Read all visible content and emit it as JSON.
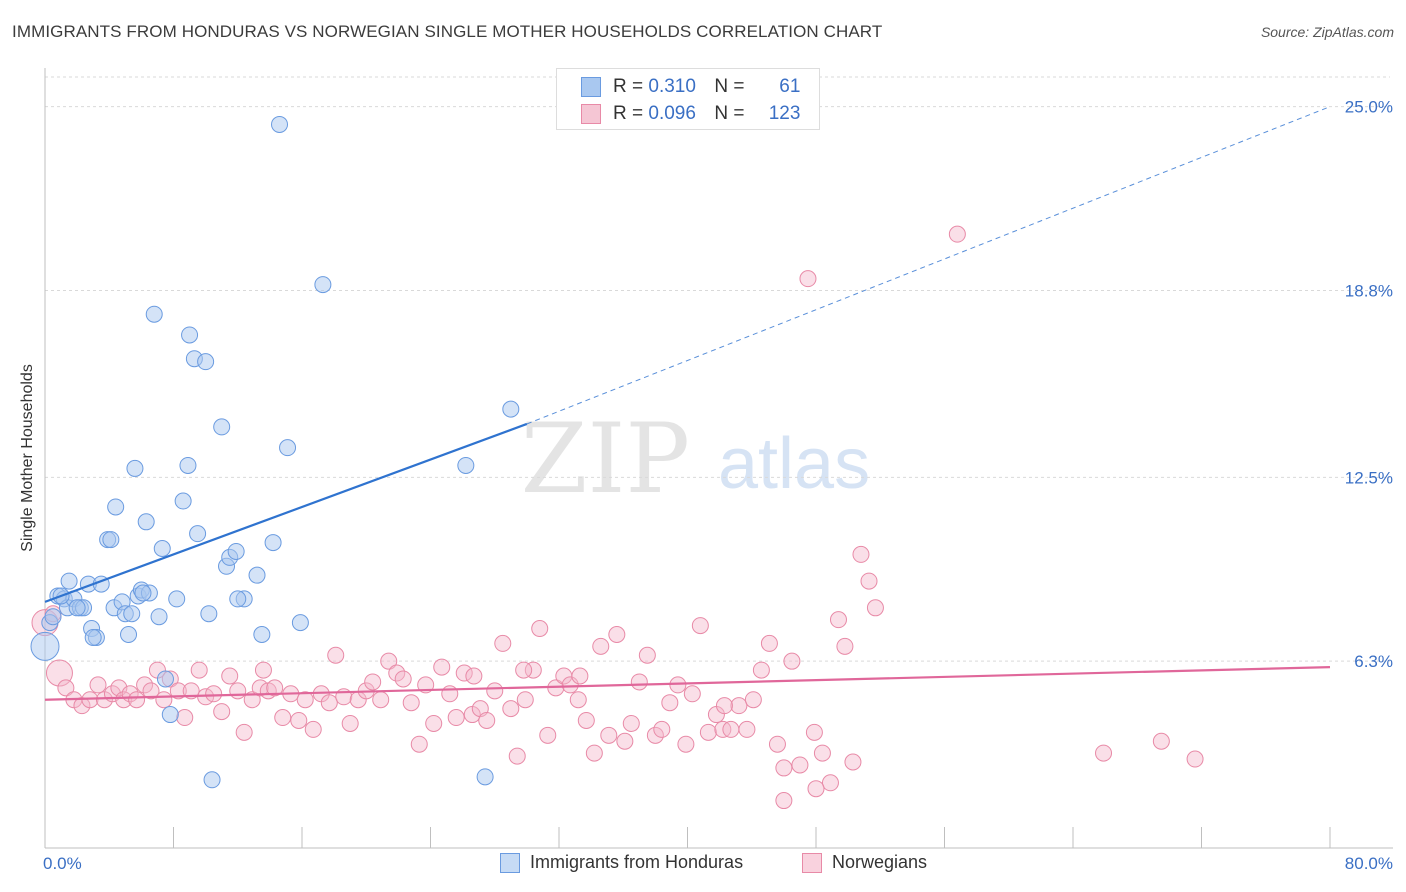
{
  "title": "IMMIGRANTS FROM HONDURAS VS NORWEGIAN SINGLE MOTHER HOUSEHOLDS CORRELATION CHART",
  "source": "Source: ZipAtlas.com",
  "watermark": {
    "zip": "ZIP",
    "atlas": "atlas"
  },
  "legend": {
    "r_label": "R =",
    "n_label": "N =",
    "series1": {
      "r": "0.310",
      "n": "61"
    },
    "series2": {
      "r": "0.096",
      "n": "123"
    }
  },
  "colors": {
    "blue_fill": "#a9c8f0",
    "blue_stroke": "#6a9be0",
    "blue_line": "#2f73cf",
    "pink_fill": "#f5b8cb",
    "pink_stroke": "#e88aa7",
    "pink_line": "#e0679a",
    "tick_text": "#3a6fc4",
    "grid": "#d9d9d9"
  },
  "chart_data": {
    "type": "scatter",
    "title": "IMMIGRANTS FROM HONDURAS VS NORWEGIAN SINGLE MOTHER HOUSEHOLDS CORRELATION CHART",
    "xlabel": "",
    "ylabel": "Single Mother Households",
    "xlim": [
      0,
      80
    ],
    "ylim": [
      0,
      26
    ],
    "x_tick_labels": [
      "0.0%",
      "80.0%"
    ],
    "y_ticks": [
      6.3,
      12.5,
      18.8,
      25.0
    ],
    "y_tick_labels": [
      "6.3%",
      "12.5%",
      "18.8%",
      "25.0%"
    ],
    "grid": "horizontal dashed",
    "legend_position": "top-center",
    "series": [
      {
        "name": "Immigrants from Honduras",
        "color": "#a9c8f0",
        "trend": {
          "x0": 0,
          "y0": 8.3,
          "x1": 30,
          "y1": 14.3,
          "dashed_to_x": 80,
          "dashed_to_y": 25.0
        },
        "points": [
          [
            0.0,
            6.8
          ],
          [
            0.3,
            7.6
          ],
          [
            0.5,
            7.8
          ],
          [
            0.8,
            8.5
          ],
          [
            1.2,
            8.4
          ],
          [
            1.4,
            8.1
          ],
          [
            1.5,
            9.0
          ],
          [
            1.8,
            8.4
          ],
          [
            2.2,
            8.1
          ],
          [
            2.4,
            8.1
          ],
          [
            2.7,
            8.9
          ],
          [
            2.9,
            7.4
          ],
          [
            3.2,
            7.1
          ],
          [
            3.5,
            8.9
          ],
          [
            3.9,
            10.4
          ],
          [
            4.1,
            10.4
          ],
          [
            4.3,
            8.1
          ],
          [
            4.4,
            11.5
          ],
          [
            4.8,
            8.3
          ],
          [
            5.0,
            7.9
          ],
          [
            5.2,
            7.2
          ],
          [
            5.4,
            7.9
          ],
          [
            5.6,
            12.8
          ],
          [
            5.8,
            8.5
          ],
          [
            6.0,
            8.7
          ],
          [
            6.3,
            11.0
          ],
          [
            6.5,
            8.6
          ],
          [
            6.8,
            18.0
          ],
          [
            7.1,
            7.8
          ],
          [
            7.3,
            10.1
          ],
          [
            7.5,
            5.7
          ],
          [
            7.8,
            4.5
          ],
          [
            8.2,
            8.4
          ],
          [
            8.6,
            11.7
          ],
          [
            8.9,
            12.9
          ],
          [
            9.0,
            17.3
          ],
          [
            9.3,
            16.5
          ],
          [
            9.5,
            10.6
          ],
          [
            10.0,
            16.4
          ],
          [
            10.2,
            7.9
          ],
          [
            10.4,
            2.3
          ],
          [
            11.0,
            14.2
          ],
          [
            11.3,
            9.5
          ],
          [
            11.5,
            9.8
          ],
          [
            11.9,
            10.0
          ],
          [
            12.4,
            8.4
          ],
          [
            13.2,
            9.2
          ],
          [
            13.5,
            7.2
          ],
          [
            14.2,
            10.3
          ],
          [
            15.1,
            13.5
          ],
          [
            15.9,
            7.6
          ],
          [
            14.6,
            24.4
          ],
          [
            17.3,
            19.0
          ],
          [
            26.2,
            12.9
          ],
          [
            27.4,
            2.4
          ],
          [
            29.0,
            14.8
          ],
          [
            1.0,
            8.5
          ],
          [
            2.0,
            8.1
          ],
          [
            3.0,
            7.1
          ],
          [
            6.1,
            8.6
          ],
          [
            12.0,
            8.4
          ]
        ]
      },
      {
        "name": "Norwegians",
        "color": "#f5b8cb",
        "trend": {
          "x0": 0,
          "y0": 5.0,
          "x1": 80,
          "y1": 6.1
        },
        "points": [
          [
            0.0,
            7.6
          ],
          [
            0.5,
            7.9
          ],
          [
            0.9,
            5.9
          ],
          [
            1.3,
            5.4
          ],
          [
            1.8,
            5.0
          ],
          [
            2.3,
            4.8
          ],
          [
            2.8,
            5.0
          ],
          [
            3.3,
            5.5
          ],
          [
            3.7,
            5.0
          ],
          [
            4.2,
            5.2
          ],
          [
            4.6,
            5.4
          ],
          [
            4.9,
            5.0
          ],
          [
            5.3,
            5.2
          ],
          [
            5.7,
            5.0
          ],
          [
            6.2,
            5.5
          ],
          [
            6.6,
            5.3
          ],
          [
            7.0,
            6.0
          ],
          [
            7.4,
            5.0
          ],
          [
            7.8,
            5.7
          ],
          [
            8.3,
            5.3
          ],
          [
            8.7,
            4.4
          ],
          [
            9.1,
            5.3
          ],
          [
            9.6,
            6.0
          ],
          [
            10.0,
            5.1
          ],
          [
            10.5,
            5.2
          ],
          [
            11.0,
            4.6
          ],
          [
            11.5,
            5.8
          ],
          [
            12.0,
            5.3
          ],
          [
            12.4,
            3.9
          ],
          [
            12.9,
            5.0
          ],
          [
            13.4,
            5.4
          ],
          [
            13.9,
            5.3
          ],
          [
            14.3,
            5.4
          ],
          [
            14.8,
            4.4
          ],
          [
            15.3,
            5.2
          ],
          [
            15.8,
            4.3
          ],
          [
            16.2,
            5.0
          ],
          [
            16.7,
            4.0
          ],
          [
            17.2,
            5.2
          ],
          [
            17.7,
            4.9
          ],
          [
            18.1,
            6.5
          ],
          [
            18.6,
            5.1
          ],
          [
            19.0,
            4.2
          ],
          [
            19.5,
            5.0
          ],
          [
            20.0,
            5.3
          ],
          [
            20.4,
            5.6
          ],
          [
            20.9,
            5.0
          ],
          [
            21.4,
            6.3
          ],
          [
            21.9,
            5.9
          ],
          [
            22.3,
            5.7
          ],
          [
            22.8,
            4.9
          ],
          [
            23.3,
            3.5
          ],
          [
            23.7,
            5.5
          ],
          [
            24.2,
            4.2
          ],
          [
            24.7,
            6.1
          ],
          [
            25.2,
            5.2
          ],
          [
            25.6,
            4.4
          ],
          [
            26.1,
            5.9
          ],
          [
            26.6,
            4.5
          ],
          [
            27.1,
            4.7
          ],
          [
            27.5,
            4.3
          ],
          [
            28.0,
            5.3
          ],
          [
            28.5,
            6.9
          ],
          [
            29.0,
            4.7
          ],
          [
            29.4,
            3.1
          ],
          [
            29.9,
            5.0
          ],
          [
            30.4,
            6.0
          ],
          [
            30.8,
            7.4
          ],
          [
            31.3,
            3.8
          ],
          [
            31.8,
            5.4
          ],
          [
            32.3,
            5.8
          ],
          [
            32.7,
            5.5
          ],
          [
            33.2,
            5.0
          ],
          [
            33.7,
            4.3
          ],
          [
            34.2,
            3.2
          ],
          [
            34.6,
            6.8
          ],
          [
            35.1,
            3.8
          ],
          [
            35.6,
            7.2
          ],
          [
            36.1,
            3.6
          ],
          [
            36.5,
            4.2
          ],
          [
            37.0,
            5.6
          ],
          [
            37.5,
            6.5
          ],
          [
            38.0,
            3.8
          ],
          [
            38.4,
            4.0
          ],
          [
            38.9,
            4.9
          ],
          [
            39.4,
            5.5
          ],
          [
            39.9,
            3.5
          ],
          [
            40.3,
            5.2
          ],
          [
            40.8,
            7.5
          ],
          [
            41.3,
            3.9
          ],
          [
            41.8,
            4.5
          ],
          [
            42.2,
            4.0
          ],
          [
            42.7,
            4.0
          ],
          [
            43.2,
            4.8
          ],
          [
            43.7,
            4.0
          ],
          [
            44.1,
            5.0
          ],
          [
            44.6,
            6.0
          ],
          [
            45.1,
            6.9
          ],
          [
            45.6,
            3.5
          ],
          [
            46.0,
            2.7
          ],
          [
            46.5,
            6.3
          ],
          [
            47.0,
            2.8
          ],
          [
            47.5,
            19.2
          ],
          [
            47.9,
            3.9
          ],
          [
            48.4,
            3.2
          ],
          [
            48.9,
            2.2
          ],
          [
            49.4,
            7.7
          ],
          [
            49.8,
            6.8
          ],
          [
            50.3,
            2.9
          ],
          [
            50.8,
            9.9
          ],
          [
            51.3,
            9.0
          ],
          [
            51.7,
            8.1
          ],
          [
            56.8,
            20.7
          ],
          [
            65.9,
            3.2
          ],
          [
            69.5,
            3.6
          ],
          [
            71.6,
            3.0
          ],
          [
            48.0,
            2.0
          ],
          [
            46.0,
            1.6
          ],
          [
            29.8,
            6.0
          ],
          [
            33.3,
            5.8
          ],
          [
            42.3,
            4.8
          ],
          [
            26.7,
            5.8
          ],
          [
            13.6,
            6.0
          ]
        ]
      }
    ]
  }
}
